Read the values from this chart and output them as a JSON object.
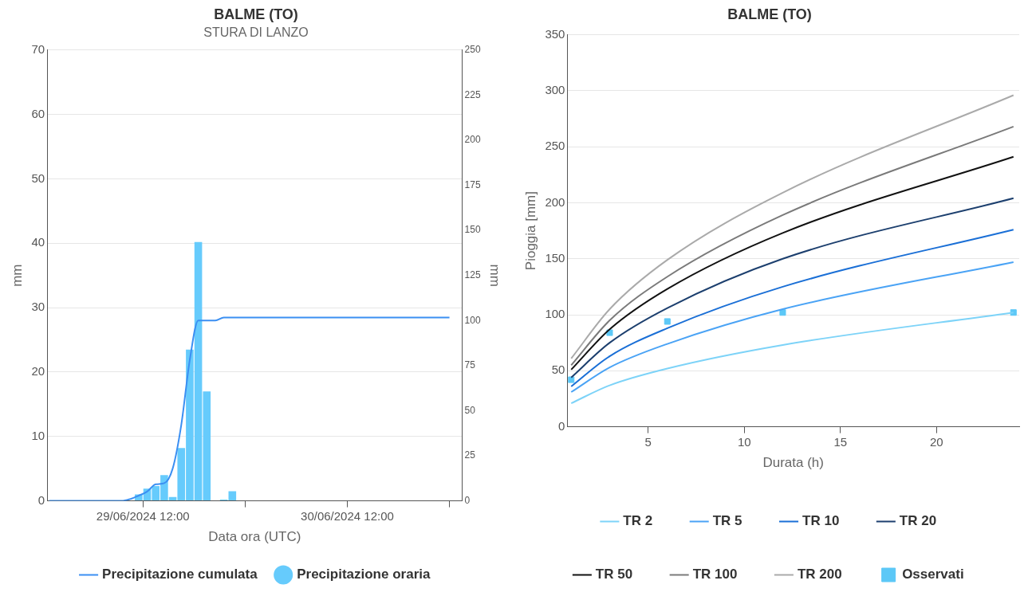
{
  "chart_data": [
    {
      "type": "bar",
      "title": "BALME (TO)",
      "subtitle": "STURA DI LANZO",
      "xlabel": "Data ora (UTC)",
      "ylabel": "mm",
      "y2label": "mm",
      "xlim": [
        "2024-06-29T00:45",
        "2024-07-01T01:30"
      ],
      "xticks": [
        {
          "value": "2024-06-29T12:00",
          "label": "29/06/2024 12:00"
        },
        {
          "value": "2024-06-30T00:00",
          "label": null
        },
        {
          "value": "2024-06-30T12:00",
          "label": "30/06/2024 12:00"
        },
        {
          "value": "2024-07-01T00:00",
          "label": null
        }
      ],
      "ylim": [
        0,
        70
      ],
      "yticks": [
        0,
        10,
        20,
        30,
        40,
        50,
        60,
        70
      ],
      "y2lim": [
        0,
        250
      ],
      "y2ticks": [
        0,
        25,
        50,
        75,
        100,
        125,
        150,
        175,
        200,
        225,
        250
      ],
      "grid": "y",
      "legend": "bottom",
      "series": [
        {
          "name": "Precipitazione oraria",
          "type": "bar",
          "color": "#66cbfc",
          "marker": "circle",
          "x": [
            "2024-06-29T11:30",
            "2024-06-29T12:30",
            "2024-06-29T13:30",
            "2024-06-29T14:30",
            "2024-06-29T15:30",
            "2024-06-29T16:30",
            "2024-06-29T17:30",
            "2024-06-29T18:30",
            "2024-06-29T19:30",
            "2024-06-29T21:30",
            "2024-06-29T22:30"
          ],
          "values": [
            1.0,
            1.9,
            2.3,
            4.0,
            0.6,
            8.2,
            23.5,
            40.2,
            17.0,
            0.2,
            1.5
          ]
        },
        {
          "name": "Precipitazione cumulata",
          "type": "line",
          "axis": "y2",
          "color": "#3b8ff2",
          "marker": "none",
          "x": [
            "2024-06-29T01:00",
            "2024-06-29T09:30",
            "2024-06-29T10:30",
            "2024-06-29T11:30",
            "2024-06-29T12:30",
            "2024-06-29T13:30",
            "2024-06-29T14:30",
            "2024-06-29T15:30",
            "2024-06-29T16:30",
            "2024-06-29T17:30",
            "2024-06-29T18:30",
            "2024-06-29T19:30",
            "2024-06-29T20:30",
            "2024-06-29T21:30",
            "2024-07-01T00:00"
          ],
          "values": [
            0,
            0,
            1.0,
            2.9,
            5.2,
            9.2,
            9.8,
            18.0,
            42,
            78,
            100,
            100,
            100,
            101.7,
            101.7
          ]
        }
      ]
    },
    {
      "type": "line",
      "title": "BALME (TO)",
      "xlabel": "Durata (h)",
      "ylabel": "Pioggia [mm]",
      "xlim": [
        0.8,
        24.3
      ],
      "xticks": [
        5,
        10,
        15,
        20
      ],
      "ylim": [
        0,
        350
      ],
      "yticks": [
        0,
        50,
        100,
        150,
        200,
        250,
        300,
        350
      ],
      "grid": "y",
      "legend": "bottom",
      "marker": "none",
      "x": [
        1,
        3,
        6,
        12,
        24
      ],
      "series": [
        {
          "name": "TR 2",
          "color": "#7dd3f8",
          "values": [
            21,
            37,
            52,
            73,
            102
          ]
        },
        {
          "name": "TR 5",
          "color": "#4aa3f5",
          "values": [
            31,
            53,
            74,
            105,
            147
          ]
        },
        {
          "name": "TR 10",
          "color": "#1a6fd6",
          "values": [
            36,
            63,
            88,
            125,
            176
          ]
        },
        {
          "name": "TR 20",
          "color": "#1c3f6e",
          "values": [
            44,
            75,
            106,
            150,
            204
          ]
        },
        {
          "name": "TR 50",
          "color": "#111111",
          "values": [
            51,
            87,
            123,
            173,
            241
          ]
        },
        {
          "name": "TR 100",
          "color": "#7a7a7a",
          "values": [
            55,
            95,
            134,
            189,
            268
          ]
        },
        {
          "name": "TR 200",
          "color": "#aaaaaa",
          "values": [
            61,
            105,
            149,
            209,
            296
          ]
        },
        {
          "name": "Osservati",
          "type": "scatter",
          "marker": "square",
          "color": "#5cc8f7",
          "values": [
            42,
            84,
            94,
            102,
            102
          ]
        }
      ]
    }
  ]
}
